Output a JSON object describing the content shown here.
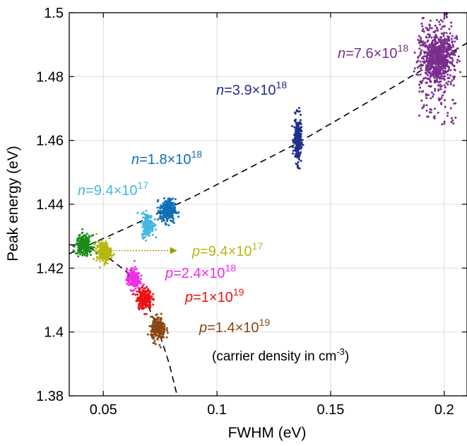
{
  "chart_data": {
    "type": "scatter",
    "xlabel": "FWHM (eV)",
    "ylabel": "Peak energy (eV)",
    "xlim": [
      0.035,
      0.21
    ],
    "ylim": [
      1.38,
      1.5
    ],
    "xticks": [
      0.05,
      0.1,
      0.15,
      0.2
    ],
    "xtick_labels": [
      "0.05",
      "0.1",
      "0.15",
      "0.2"
    ],
    "yticks": [
      1.38,
      1.4,
      1.42,
      1.44,
      1.46,
      1.48,
      1.5
    ],
    "ytick_labels": [
      "1.38",
      "1.4",
      "1.42",
      "1.44",
      "1.46",
      "1.48",
      "1.5"
    ],
    "grid": true,
    "footnote": {
      "prefix": "(carrier density in cm",
      "exp": "-3",
      "suffix": ")"
    },
    "clusters": [
      {
        "type_letter": "n",
        "mantissa": "7.6×10",
        "exp": "18",
        "color": "#7b2d8e",
        "cx": 0.197,
        "cy": 1.486,
        "sx": 0.0035,
        "sy": 0.0042,
        "count": 900,
        "spread_x": 0.018,
        "spread_y": 0.042
      },
      {
        "type_letter": "n",
        "mantissa": "3.9×10",
        "exp": "18",
        "color": "#1f2f8c",
        "cx": 0.1355,
        "cy": 1.46,
        "sx": 0.0008,
        "sy": 0.0035,
        "count": 260
      },
      {
        "type_letter": "n",
        "mantissa": "1.8×10",
        "exp": "18",
        "color": "#0f6fb7",
        "cx": 0.0783,
        "cy": 1.438,
        "sx": 0.0017,
        "sy": 0.0018,
        "count": 280
      },
      {
        "type_letter": "n",
        "mantissa": "9.4×10",
        "exp": "17",
        "color": "#45b7e3",
        "cx": 0.0695,
        "cy": 1.4335,
        "sx": 0.0013,
        "sy": 0.0018,
        "count": 200
      },
      {
        "type_letter": "p",
        "mantissa": "9.4×10",
        "exp": "17",
        "color": "#b5b812",
        "cx": 0.0502,
        "cy": 1.425,
        "sx": 0.0016,
        "sy": 0.0016,
        "count": 220
      },
      {
        "type_letter": "p",
        "mantissa": "2.4×10",
        "exp": "18",
        "color": "#ee2ee6",
        "cx": 0.0632,
        "cy": 1.4165,
        "sx": 0.0014,
        "sy": 0.0016,
        "count": 220
      },
      {
        "type_letter": "p",
        "mantissa": "1×10",
        "exp": "19",
        "color": "#ee1111",
        "cx": 0.068,
        "cy": 1.4105,
        "sx": 0.0016,
        "sy": 0.0016,
        "count": 220
      },
      {
        "type_letter": "p",
        "mantissa": "1.4×10",
        "exp": "19",
        "color": "#8b4513",
        "cx": 0.0742,
        "cy": 1.4008,
        "sx": 0.0016,
        "sy": 0.0018,
        "count": 220
      },
      {
        "type_letter": "",
        "mantissa": "",
        "exp": "",
        "color": "#1a8c1a",
        "cx": 0.0415,
        "cy": 1.4272,
        "sx": 0.0017,
        "sy": 0.0015,
        "count": 260
      }
    ],
    "fit_lines": [
      {
        "style": "dashed",
        "points": [
          [
            0.035,
            1.4245
          ],
          [
            0.06,
            1.4325
          ],
          [
            0.09,
            1.4425
          ],
          [
            0.135,
            1.459
          ],
          [
            0.17,
            1.4735
          ],
          [
            0.21,
            1.4905
          ]
        ]
      },
      {
        "style": "dashed",
        "points": [
          [
            0.035,
            1.4273
          ],
          [
            0.04,
            1.4273
          ],
          [
            0.05,
            1.4245
          ],
          [
            0.06,
            1.419
          ],
          [
            0.068,
            1.411
          ],
          [
            0.074,
            1.401
          ],
          [
            0.079,
            1.39
          ],
          [
            0.0825,
            1.38
          ]
        ]
      }
    ],
    "arrow": {
      "x0": 0.053,
      "x1": 0.0825,
      "y": 1.4255,
      "color": "#9aa000"
    }
  }
}
